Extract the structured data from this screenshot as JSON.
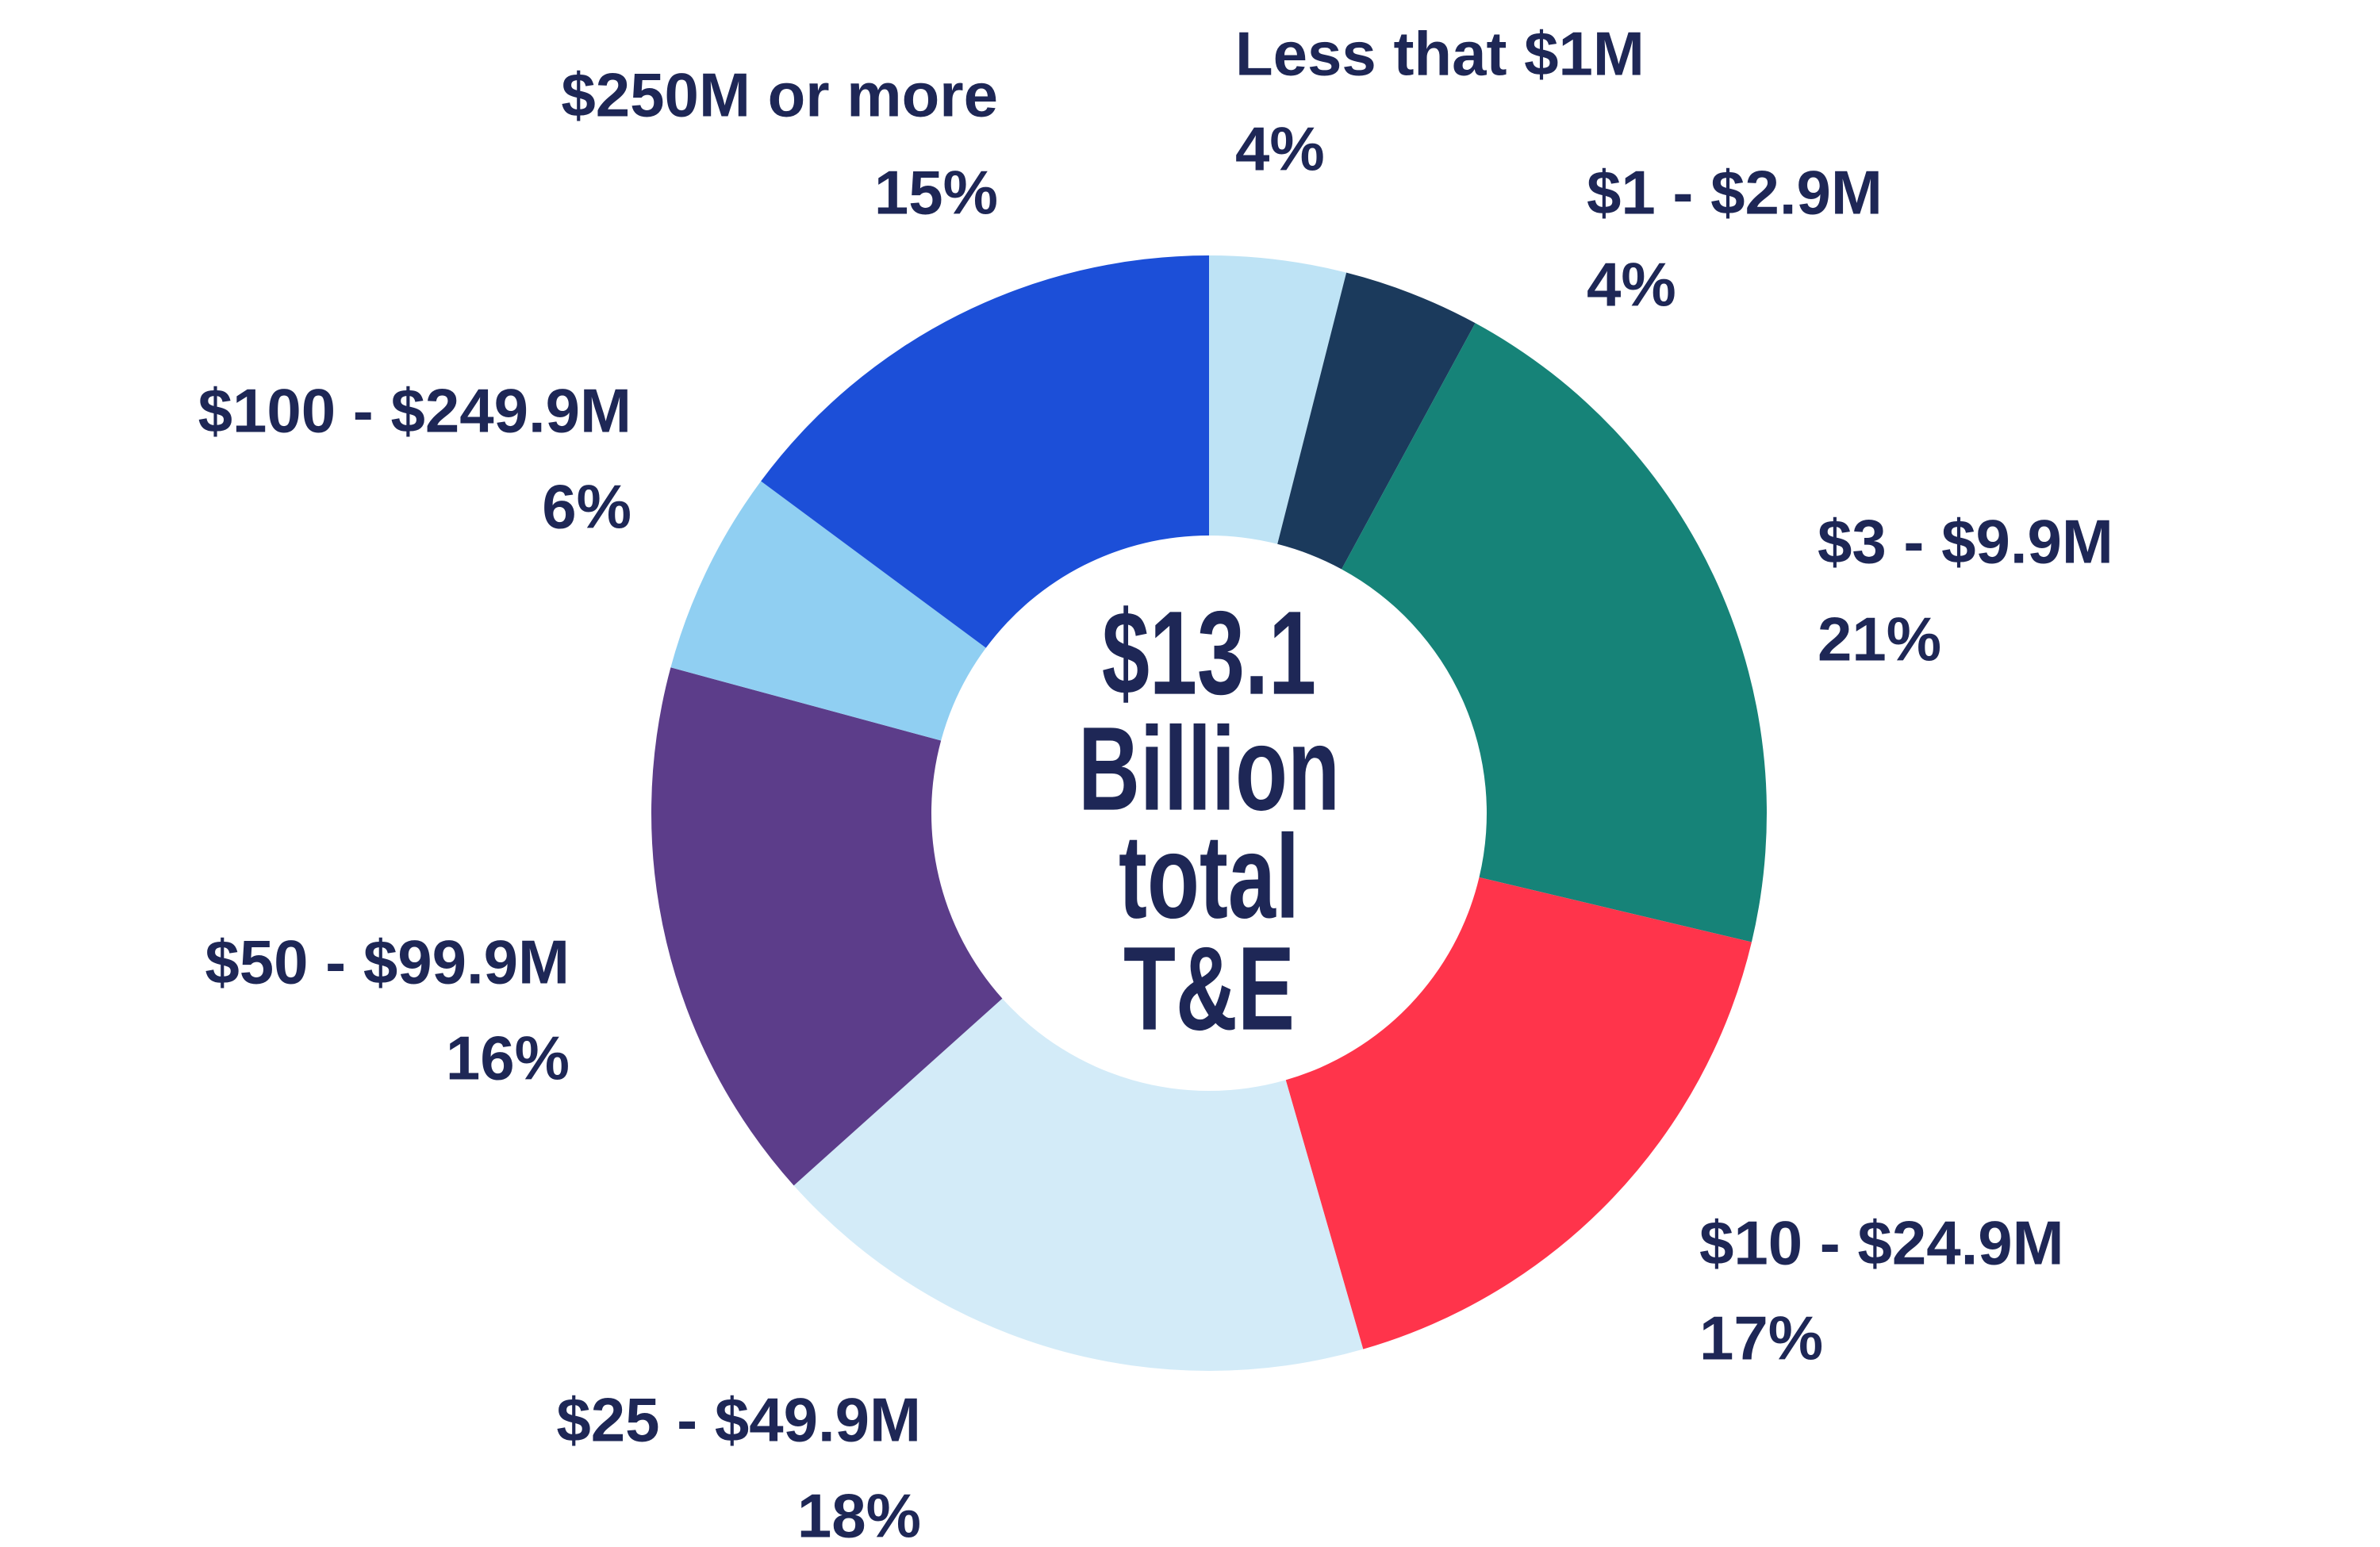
{
  "chart_data": {
    "type": "donut",
    "center_text": [
      "$13.1",
      "Billion",
      "total",
      "T&E"
    ],
    "categories": [
      "Less that $1M",
      "$1 - $2.9M",
      "$3 - $9.9M",
      "$10 - $24.9M",
      "$25 - $49.9M",
      "$50 - $99.9M",
      "$100 - $249.9M",
      "$250M or more"
    ],
    "values": [
      4,
      4,
      21,
      17,
      18,
      16,
      6,
      15
    ],
    "value_labels": [
      "4%",
      "4%",
      "21%",
      "17%",
      "18%",
      "16%",
      "6%",
      "15%"
    ],
    "colors": [
      "#bee3f5",
      "#1b3a5c",
      "#168378",
      "#ff344b",
      "#d3ebf8",
      "#5c3d8a",
      "#90cff2",
      "#1c4fd8"
    ]
  }
}
